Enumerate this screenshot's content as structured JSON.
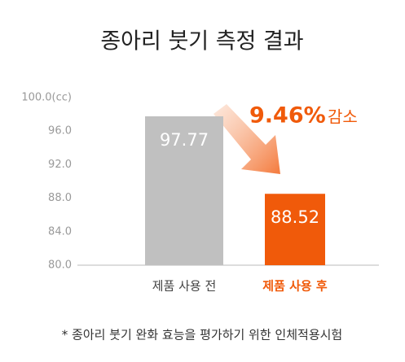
{
  "chart_data": {
    "type": "bar",
    "title": "종아리 붓기 측정 결과",
    "categories": [
      "제품 사용 전",
      "제품 사용 후"
    ],
    "values": [
      97.77,
      88.52
    ],
    "colors": [
      "#c0c0c0",
      "#f05a0a"
    ],
    "ylim": [
      80,
      100
    ],
    "yticks": [
      {
        "value": 100,
        "label": "100.0(cc)"
      },
      {
        "value": 96,
        "label": "96.0"
      },
      {
        "value": 92,
        "label": "92.0"
      },
      {
        "value": 88,
        "label": "88.0"
      },
      {
        "value": 84,
        "label": "84.0"
      },
      {
        "value": 80,
        "label": "80.0"
      }
    ],
    "annotation": [
      "9.46%",
      "감소"
    ],
    "footnote": "* 종아리 붓기 완화 효능을 평가하기 위한 인체적용시험"
  }
}
